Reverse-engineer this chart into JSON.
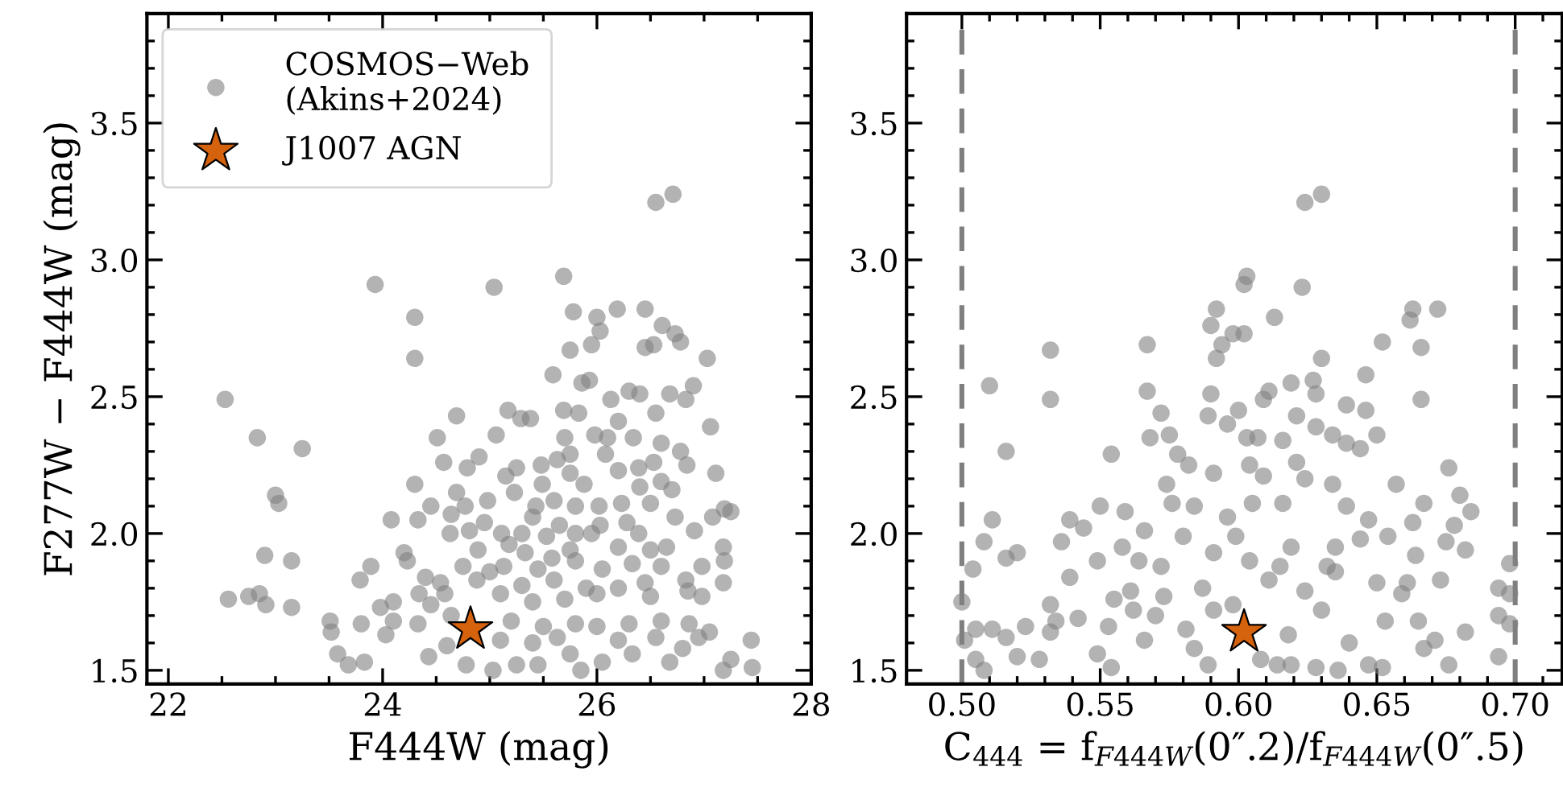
{
  "chart_data": [
    {
      "type": "scatter",
      "xlabel": "F444W (mag)",
      "ylabel": "F277W − F444W (mag)",
      "xlim": [
        21.8,
        28
      ],
      "ylim": [
        1.45,
        3.9
      ],
      "xticks": [
        22,
        {
          "value": 22.5,
          "label": null
        },
        {
          "value": 23,
          "label": null
        },
        {
          "value": 23.5,
          "label": null
        },
        24,
        {
          "value": 24.5,
          "label": null
        },
        {
          "value": 25,
          "label": null
        },
        {
          "value": 25.5,
          "label": null
        },
        26,
        {
          "value": 26.5,
          "label": null
        },
        {
          "value": 27,
          "label": null
        },
        {
          "value": 27.5,
          "label": null
        },
        28
      ],
      "yticks": [
        1.5,
        {
          "value": 1.6,
          "label": null
        },
        {
          "value": 1.7,
          "label": null
        },
        {
          "value": 1.8,
          "label": null
        },
        {
          "value": 1.9,
          "label": null
        },
        {
          "value": 2,
          "label": "2.0"
        },
        {
          "value": 2.1,
          "label": null
        },
        {
          "value": 2.2,
          "label": null
        },
        {
          "value": 2.3,
          "label": null
        },
        {
          "value": 2.4,
          "label": null
        },
        2.5,
        {
          "value": 2.6,
          "label": null
        },
        {
          "value": 2.7,
          "label": null
        },
        {
          "value": 2.8,
          "label": null
        },
        {
          "value": 2.9,
          "label": null
        },
        {
          "value": 3,
          "label": "3.0"
        },
        {
          "value": 3.1,
          "label": null
        },
        {
          "value": 3.2,
          "label": null
        },
        {
          "value": 3.3,
          "label": null
        },
        {
          "value": 3.4,
          "label": null
        },
        3.5,
        {
          "value": 3.6,
          "label": null
        },
        {
          "value": 3.7,
          "label": null
        },
        {
          "value": 3.8,
          "label": null
        }
      ],
      "legend": "top left",
      "series": [
        {
          "name": "COSMOS−Web\n(Akins+2024)",
          "marker": "circle",
          "color": "#808080",
          "x": [
            22.53,
            22.83,
            23.25,
            23.0,
            23.03,
            22.9,
            23.15,
            22.56,
            22.75,
            22.85,
            22.91,
            23.15,
            23.93,
            24.3,
            24.3,
            25.04,
            25.69,
            26.55,
            26.71,
            25.78,
            26.19,
            26.45,
            26.0,
            26.03,
            25.95,
            25.75,
            26.61,
            26.73,
            26.78,
            26.45,
            26.53,
            27.03,
            25.59,
            25.86,
            25.93,
            26.9,
            26.68,
            26.83,
            26.13,
            26.3,
            26.4,
            24.69,
            25.17,
            25.29,
            25.38,
            25.69,
            25.83,
            26.2,
            26.55,
            27.06,
            24.51,
            25.06,
            25.7,
            25.98,
            26.1,
            26.34,
            26.6,
            26.78,
            26.08,
            24.57,
            24.9,
            24.79,
            25.25,
            25.48,
            25.63,
            25.75,
            26.53,
            26.84,
            27.11,
            24.3,
            24.69,
            25.15,
            25.49,
            25.75,
            25.88,
            26.2,
            26.39,
            26.6,
            26.7,
            25.23,
            24.45,
            24.77,
            24.98,
            25.43,
            25.6,
            25.8,
            26.02,
            26.23,
            26.4,
            26.5,
            24.08,
            24.33,
            24.64,
            24.95,
            25.4,
            25.65,
            26.03,
            26.28,
            26.73,
            27.08,
            27.19,
            27.25,
            24.63,
            24.81,
            25.11,
            25.3,
            25.53,
            25.8,
            25.95,
            26.39,
            26.91,
            24.2,
            24.89,
            25.18,
            25.33,
            25.58,
            25.75,
            26.2,
            26.5,
            26.65,
            27.18,
            24.23,
            23.89,
            24.75,
            25.0,
            25.13,
            25.45,
            25.8,
            26.05,
            26.33,
            26.6,
            26.98,
            27.19,
            23.79,
            24.4,
            24.54,
            24.88,
            25.3,
            25.6,
            25.9,
            26.2,
            26.45,
            26.83,
            27.18,
            23.98,
            24.1,
            24.34,
            24.58,
            25.1,
            25.4,
            25.7,
            26.0,
            26.5,
            26.85,
            26.98,
            23.51,
            23.52,
            23.8,
            24.03,
            24.1,
            24.33,
            24.45,
            24.64,
            25.2,
            25.5,
            25.8,
            26.0,
            26.3,
            26.6,
            26.86,
            27.05,
            23.58,
            23.68,
            23.83,
            24.43,
            24.6,
            24.78,
            25.03,
            25.25,
            25.45,
            25.75,
            25.85,
            26.05,
            26.2,
            26.33,
            26.55,
            26.68,
            26.8,
            26.95,
            27.18,
            27.25,
            27.44,
            27.45,
            25.1,
            25.4,
            25.63
          ],
          "values": [
            2.49,
            2.35,
            2.31,
            2.14,
            2.11,
            1.92,
            1.9,
            1.76,
            1.77,
            1.78,
            1.74,
            1.73,
            2.91,
            2.79,
            2.64,
            2.9,
            2.94,
            3.21,
            3.24,
            2.81,
            2.82,
            2.82,
            2.79,
            2.74,
            2.69,
            2.67,
            2.76,
            2.73,
            2.7,
            2.68,
            2.69,
            2.64,
            2.58,
            2.55,
            2.56,
            2.54,
            2.51,
            2.49,
            2.49,
            2.52,
            2.51,
            2.43,
            2.45,
            2.42,
            2.42,
            2.45,
            2.44,
            2.41,
            2.44,
            2.39,
            2.35,
            2.36,
            2.35,
            2.36,
            2.35,
            2.35,
            2.33,
            2.3,
            2.29,
            2.26,
            2.28,
            2.24,
            2.24,
            2.25,
            2.27,
            2.29,
            2.26,
            2.25,
            2.22,
            2.18,
            2.15,
            2.21,
            2.18,
            2.22,
            2.18,
            2.23,
            2.24,
            2.19,
            2.16,
            2.15,
            2.1,
            2.1,
            2.12,
            2.1,
            2.12,
            2.1,
            2.1,
            2.11,
            2.17,
            2.11,
            2.05,
            2.05,
            2.07,
            2.04,
            2.06,
            2.03,
            2.03,
            2.04,
            2.06,
            2.06,
            2.09,
            2.08,
            2.0,
            2.01,
            2.0,
            2.0,
            1.99,
            2.0,
            2.0,
            2.0,
            2.01,
            1.93,
            1.94,
            1.96,
            1.93,
            1.91,
            1.94,
            1.95,
            1.94,
            1.95,
            1.95,
            1.9,
            1.88,
            1.88,
            1.86,
            1.88,
            1.87,
            1.9,
            1.87,
            1.89,
            1.88,
            1.88,
            1.9,
            1.83,
            1.84,
            1.82,
            1.83,
            1.81,
            1.83,
            1.8,
            1.8,
            1.82,
            1.83,
            1.82,
            1.73,
            1.75,
            1.78,
            1.78,
            1.78,
            1.75,
            1.76,
            1.78,
            1.77,
            1.79,
            1.77,
            1.68,
            1.64,
            1.67,
            1.63,
            1.68,
            1.67,
            1.74,
            1.7,
            1.68,
            1.66,
            1.67,
            1.66,
            1.67,
            1.68,
            1.67,
            1.64,
            1.56,
            1.52,
            1.53,
            1.55,
            1.59,
            1.52,
            1.5,
            1.52,
            1.52,
            1.56,
            1.5,
            1.53,
            1.61,
            1.56,
            1.62,
            1.53,
            1.58,
            1.62,
            1.5,
            1.54,
            1.61,
            1.51,
            1.61,
            1.6,
            1.62
          ]
        },
        {
          "name": "J1007 AGN",
          "marker": "star",
          "color": "#d5620c",
          "x": [
            24.82
          ],
          "values": [
            1.65
          ]
        }
      ]
    },
    {
      "type": "scatter",
      "xlabel": "C$_{444}$ = f$_{F444W}$(0″.2)/f$_{F444W}$(0″.5)",
      "xlim": [
        0.48,
        0.717
      ],
      "ylim": [
        1.45,
        3.9
      ],
      "xticks": [
        {
          "value": 0.5,
          "label": "0.50"
        },
        {
          "value": 0.51,
          "label": null
        },
        {
          "value": 0.52,
          "label": null
        },
        {
          "value": 0.53,
          "label": null
        },
        {
          "value": 0.54,
          "label": null
        },
        0.55,
        {
          "value": 0.56,
          "label": null
        },
        {
          "value": 0.57,
          "label": null
        },
        {
          "value": 0.58,
          "label": null
        },
        {
          "value": 0.59,
          "label": null
        },
        {
          "value": 0.6,
          "label": "0.60"
        },
        {
          "value": 0.61,
          "label": null
        },
        {
          "value": 0.62,
          "label": null
        },
        {
          "value": 0.63,
          "label": null
        },
        {
          "value": 0.64,
          "label": null
        },
        0.65,
        {
          "value": 0.66,
          "label": null
        },
        {
          "value": 0.67,
          "label": null
        },
        {
          "value": 0.68,
          "label": null
        },
        {
          "value": 0.69,
          "label": null
        },
        {
          "value": 0.7,
          "label": "0.70"
        },
        {
          "value": 0.71,
          "label": null
        }
      ],
      "yticks": [
        1.5,
        {
          "value": 1.6,
          "label": null
        },
        {
          "value": 1.7,
          "label": null
        },
        {
          "value": 1.8,
          "label": null
        },
        {
          "value": 1.9,
          "label": null
        },
        {
          "value": 2,
          "label": "2.0"
        },
        {
          "value": 2.1,
          "label": null
        },
        {
          "value": 2.2,
          "label": null
        },
        {
          "value": 2.3,
          "label": null
        },
        {
          "value": 2.4,
          "label": null
        },
        2.5,
        {
          "value": 2.6,
          "label": null
        },
        {
          "value": 2.7,
          "label": null
        },
        {
          "value": 2.8,
          "label": null
        },
        {
          "value": 2.9,
          "label": null
        },
        {
          "value": 3,
          "label": "3.0"
        },
        {
          "value": 3.1,
          "label": null
        },
        {
          "value": 3.2,
          "label": null
        },
        {
          "value": 3.3,
          "label": null
        },
        {
          "value": 3.4,
          "label": null
        },
        3.5,
        {
          "value": 3.6,
          "label": null
        },
        {
          "value": 3.7,
          "label": null
        },
        {
          "value": 3.8,
          "label": null
        }
      ],
      "ref_lines": [
        {
          "axis": "x",
          "value": 0.5,
          "color": "#7f7f7f",
          "line_style": "dashed"
        },
        {
          "axis": "x",
          "value": 0.7,
          "color": "#7f7f7f",
          "line_style": "dashed"
        }
      ],
      "series": [
        {
          "marker": "circle",
          "color": "#808080",
          "x": [
            0.51,
            0.516,
            0.532,
            0.532,
            0.511,
            0.508,
            0.504,
            0.5,
            0.501,
            0.505,
            0.505,
            0.508,
            0.511,
            0.516,
            0.516,
            0.52,
            0.52,
            0.523,
            0.528,
            0.532,
            0.534,
            0.532,
            0.536,
            0.539,
            0.539,
            0.542,
            0.544,
            0.549,
            0.55,
            0.549,
            0.554,
            0.554,
            0.553,
            0.555,
            0.558,
            0.559,
            0.561,
            0.562,
            0.564,
            0.566,
            0.567,
            0.567,
            0.566,
            0.568,
            0.57,
            0.572,
            0.572,
            0.574,
            0.575,
            0.576,
            0.573,
            0.578,
            0.58,
            0.581,
            0.582,
            0.584,
            0.584,
            0.587,
            0.589,
            0.59,
            0.592,
            0.59,
            0.589,
            0.591,
            0.592,
            0.594,
            0.591,
            0.591,
            0.596,
            0.596,
            0.598,
            0.6,
            0.599,
            0.598,
            0.602,
            0.602,
            0.603,
            0.603,
            0.604,
            0.605,
            0.604,
            0.608,
            0.607,
            0.609,
            0.611,
            0.609,
            0.611,
            0.613,
            0.614,
            0.615,
            0.616,
            0.616,
            0.618,
            0.619,
            0.619,
            0.619,
            0.621,
            0.621,
            0.623,
            0.624,
            0.63,
            0.624,
            0.624,
            0.627,
            0.628,
            0.628,
            0.63,
            0.628,
            0.63,
            0.632,
            0.634,
            0.634,
            0.635,
            0.635,
            0.636,
            0.639,
            0.639,
            0.639,
            0.64,
            0.644,
            0.644,
            0.646,
            0.646,
            0.647,
            0.647,
            0.65,
            0.65,
            0.652,
            0.652,
            0.653,
            0.654,
            0.657,
            0.659,
            0.661,
            0.663,
            0.662,
            0.666,
            0.666,
            0.663,
            0.664,
            0.665,
            0.667,
            0.667,
            0.672,
            0.671,
            0.673,
            0.676,
            0.676,
            0.675,
            0.678,
            0.68,
            0.682,
            0.682,
            0.684,
            0.694,
            0.694,
            0.694,
            0.698,
            0.698,
            0.698
          ],
          "values": [
            2.54,
            2.3,
            2.67,
            2.49,
            2.05,
            1.97,
            1.87,
            1.75,
            1.61,
            1.65,
            1.54,
            1.5,
            1.65,
            1.62,
            1.91,
            1.93,
            1.55,
            1.66,
            1.54,
            1.74,
            1.68,
            1.64,
            1.97,
            2.05,
            1.84,
            1.69,
            2.02,
            1.9,
            2.1,
            1.56,
            2.29,
            1.51,
            1.66,
            1.76,
            1.95,
            2.08,
            1.79,
            1.72,
            1.9,
            1.61,
            2.69,
            2.52,
            2.01,
            2.35,
            1.7,
            2.44,
            1.88,
            2.18,
            2.36,
            2.11,
            1.77,
            2.29,
            1.99,
            1.65,
            2.25,
            2.1,
            1.58,
            1.8,
            1.52,
            2.76,
            2.82,
            2.51,
            2.43,
            2.22,
            2.64,
            2.69,
            1.93,
            1.72,
            2.4,
            2.06,
            2.73,
            2.45,
            1.99,
            1.74,
            2.73,
            2.91,
            2.94,
            2.35,
            2.25,
            2.11,
            1.9,
            1.54,
            2.35,
            2.49,
            2.52,
            2.21,
            1.83,
            2.79,
            1.52,
            1.88,
            2.34,
            2.11,
            1.63,
            2.55,
            1.95,
            1.52,
            2.43,
            2.26,
            2.9,
            3.21,
            3.24,
            2.2,
            1.79,
            2.56,
            2.51,
            2.39,
            2.64,
            1.51,
            1.72,
            1.88,
            2.36,
            2.18,
            1.95,
            1.86,
            1.5,
            2.47,
            2.33,
            2.1,
            1.6,
            1.98,
            2.31,
            2.58,
            2.45,
            2.05,
            1.52,
            2.36,
            1.82,
            2.7,
            1.51,
            1.68,
            1.99,
            2.18,
            1.78,
            1.82,
            2.82,
            2.78,
            2.68,
            2.49,
            2.04,
            1.92,
            1.68,
            1.58,
            2.11,
            2.82,
            1.61,
            1.83,
            2.24,
            1.52,
            1.97,
            2.03,
            2.14,
            1.94,
            1.64,
            2.08,
            1.8,
            1.55,
            1.7,
            1.89,
            1.78,
            1.67
          ]
        },
        {
          "marker": "star",
          "color": "#d5620c",
          "x": [
            0.602
          ],
          "values": [
            1.64
          ]
        }
      ]
    }
  ]
}
